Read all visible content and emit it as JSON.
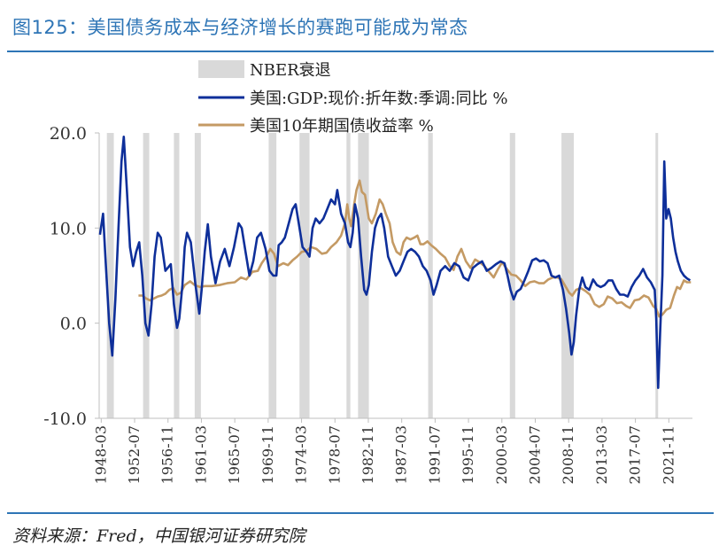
{
  "header": {
    "title": "图125：美国债务成本与经济增长的赛跑可能成为常态"
  },
  "footer": {
    "source": "资料来源：Fred，中国银河证券研究院"
  },
  "colors": {
    "title": "#2e75b6",
    "gdp": "#0e2f9a",
    "treasury": "#c49a64",
    "recession": "#d9d9d9",
    "axis": "#bfbfbf",
    "text": "#333333"
  },
  "chart_data": {
    "type": "line",
    "title": "图125：美国债务成本与经济增长的赛跑可能成为常态",
    "xlabel": "",
    "ylabel": "",
    "ylim": [
      -10,
      20
    ],
    "xlim": [
      1947.9,
      2024.9
    ],
    "yticks": [
      -10,
      0,
      10,
      20
    ],
    "ytick_labels": [
      "-10.0",
      "0.0",
      "10.0",
      "20.0"
    ],
    "xtick_labels": [
      "1948-03",
      "1952-07",
      "1956-11",
      "1961-03",
      "1965-07",
      "1969-11",
      "1974-03",
      "1978-07",
      "1982-11",
      "1987-03",
      "1991-07",
      "1995-11",
      "2000-03",
      "2004-07",
      "2008-11",
      "2013-03",
      "2017-07",
      "2021-11"
    ],
    "legend": [
      {
        "label": "NBER衰退",
        "kind": "band"
      },
      {
        "label": "美国:GDP:现价:折年数:季调:同比 %",
        "kind": "line"
      },
      {
        "label": "美国10年期国债收益率 %",
        "kind": "line"
      }
    ],
    "recessions": [
      [
        1948.9,
        1949.8
      ],
      [
        1953.6,
        1954.4
      ],
      [
        1957.6,
        1958.3
      ],
      [
        1960.3,
        1961.1
      ],
      [
        1969.9,
        1970.9
      ],
      [
        1973.9,
        1975.2
      ],
      [
        1980.0,
        1980.5
      ],
      [
        1981.5,
        1982.9
      ],
      [
        1990.6,
        1991.2
      ],
      [
        2001.2,
        2001.9
      ],
      [
        2007.9,
        2009.5
      ],
      [
        2020.1,
        2020.4
      ]
    ],
    "series": [
      {
        "name": "美国:GDP:现价:折年数:季调:同比 %",
        "x": [
          1948.0,
          1948.4,
          1948.7,
          1949.2,
          1949.6,
          1950.0,
          1950.4,
          1950.8,
          1951.1,
          1951.5,
          1951.9,
          1952.3,
          1952.7,
          1953.1,
          1953.5,
          1953.9,
          1954.3,
          1954.7,
          1955.1,
          1955.5,
          1955.9,
          1956.5,
          1957.2,
          1957.6,
          1958.0,
          1958.3,
          1958.7,
          1959.0,
          1959.3,
          1959.8,
          1960.4,
          1960.9,
          1961.2,
          1961.6,
          1962.0,
          1962.4,
          1963.0,
          1963.6,
          1964.2,
          1964.8,
          1965.4,
          1966.0,
          1966.4,
          1966.9,
          1967.4,
          1967.9,
          1968.4,
          1968.9,
          1969.5,
          1970.0,
          1970.5,
          1970.9,
          1971.2,
          1971.6,
          1972.0,
          1972.5,
          1973.0,
          1973.4,
          1973.8,
          1974.3,
          1974.8,
          1975.2,
          1975.6,
          1976.0,
          1976.5,
          1977.0,
          1977.5,
          1978.0,
          1978.5,
          1978.8,
          1979.3,
          1979.8,
          1980.2,
          1980.5,
          1980.8,
          1981.1,
          1981.5,
          1981.9,
          1982.3,
          1982.6,
          1982.9,
          1983.3,
          1983.7,
          1984.1,
          1984.5,
          1984.9,
          1985.4,
          1985.9,
          1986.4,
          1986.9,
          1987.4,
          1987.9,
          1988.4,
          1988.9,
          1989.4,
          1989.9,
          1990.4,
          1990.9,
          1991.3,
          1991.7,
          1992.2,
          1992.8,
          1993.4,
          1994.0,
          1994.6,
          1995.2,
          1995.8,
          1996.4,
          1997.0,
          1997.6,
          1998.2,
          1998.8,
          1999.4,
          2000.0,
          2000.5,
          2000.9,
          2001.3,
          2001.7,
          2002.1,
          2002.6,
          2003.1,
          2003.6,
          2004.1,
          2004.6,
          2005.1,
          2005.6,
          2006.1,
          2006.6,
          2007.1,
          2007.6,
          2008.1,
          2008.5,
          2008.9,
          2009.2,
          2009.5,
          2009.8,
          2010.2,
          2010.6,
          2011.0,
          2011.5,
          2012.0,
          2012.5,
          2013.0,
          2013.5,
          2014.0,
          2014.5,
          2015.0,
          2015.5,
          2016.0,
          2016.5,
          2017.0,
          2017.5,
          2018.0,
          2018.5,
          2019.0,
          2019.5,
          2020.0,
          2020.2,
          2020.45,
          2020.7,
          2021.0,
          2021.25,
          2021.5,
          2021.8,
          2022.1,
          2022.4,
          2022.7,
          2023.0,
          2023.4,
          2023.8,
          2024.2,
          2024.6
        ],
        "y": [
          9.3,
          11.5,
          7.0,
          0.0,
          -3.4,
          2.5,
          10.0,
          17.0,
          19.6,
          14.0,
          8.0,
          6.0,
          7.5,
          8.5,
          5.0,
          0.0,
          -1.3,
          2.0,
          7.0,
          9.5,
          9.0,
          5.5,
          6.2,
          2.0,
          -0.5,
          0.5,
          4.0,
          8.0,
          9.5,
          8.5,
          4.0,
          1.0,
          3.5,
          7.5,
          10.4,
          7.0,
          4.2,
          6.5,
          7.8,
          6.0,
          8.0,
          10.5,
          10.0,
          7.5,
          5.0,
          6.5,
          9.0,
          9.5,
          7.8,
          5.5,
          5.0,
          5.0,
          8.2,
          8.5,
          9.0,
          10.5,
          12.0,
          12.5,
          10.5,
          8.0,
          7.5,
          7.0,
          10.0,
          11.0,
          10.5,
          11.0,
          12.0,
          13.0,
          12.5,
          14.0,
          11.5,
          10.5,
          8.5,
          8.0,
          9.5,
          12.5,
          11.0,
          7.0,
          3.5,
          3.0,
          4.0,
          7.5,
          10.0,
          11.0,
          11.5,
          10.0,
          7.0,
          6.0,
          5.0,
          5.5,
          6.5,
          7.5,
          7.8,
          7.5,
          7.0,
          6.0,
          5.5,
          4.5,
          3.0,
          4.0,
          5.5,
          6.0,
          5.5,
          6.3,
          6.0,
          4.8,
          4.5,
          5.8,
          6.2,
          6.5,
          5.5,
          5.8,
          6.2,
          6.5,
          6.3,
          5.0,
          3.5,
          2.5,
          3.3,
          3.6,
          4.5,
          5.5,
          6.6,
          6.8,
          6.5,
          6.6,
          6.3,
          5.0,
          4.8,
          5.0,
          3.5,
          1.5,
          -1.0,
          -3.3,
          -2.0,
          0.8,
          3.5,
          4.8,
          3.8,
          3.5,
          4.6,
          4.0,
          3.8,
          4.0,
          4.5,
          4.5,
          3.6,
          3.0,
          3.0,
          2.8,
          3.8,
          4.5,
          5.0,
          5.7,
          4.8,
          4.3,
          3.5,
          0.5,
          -6.8,
          -1.0,
          5.0,
          17.0,
          11.0,
          12.0,
          11.0,
          9.0,
          7.5,
          6.5,
          5.5,
          5.0,
          4.7,
          4.5
        ]
      },
      {
        "name": "美国10年期国债收益率 %",
        "x": [
          1953.0,
          1953.5,
          1954.0,
          1954.5,
          1955.0,
          1955.5,
          1956.0,
          1956.5,
          1957.0,
          1957.5,
          1958.0,
          1958.5,
          1959.0,
          1959.7,
          1960.3,
          1961.0,
          1961.6,
          1962.5,
          1963.5,
          1964.5,
          1965.5,
          1966.3,
          1967.0,
          1967.8,
          1968.5,
          1969.0,
          1969.6,
          1970.1,
          1970.6,
          1971.1,
          1971.8,
          1972.4,
          1973.0,
          1973.6,
          1974.2,
          1974.8,
          1975.4,
          1976.1,
          1976.8,
          1977.4,
          1978.0,
          1978.7,
          1979.3,
          1979.8,
          1980.1,
          1980.35,
          1980.6,
          1981.0,
          1981.3,
          1981.7,
          1982.0,
          1982.4,
          1982.9,
          1983.3,
          1983.8,
          1984.3,
          1984.7,
          1985.1,
          1985.6,
          1986.0,
          1986.5,
          1987.0,
          1987.4,
          1987.8,
          1988.3,
          1988.8,
          1989.2,
          1989.6,
          1990.0,
          1990.5,
          1991.0,
          1991.6,
          1992.2,
          1992.8,
          1993.4,
          1993.9,
          1994.4,
          1994.9,
          1995.5,
          1996.1,
          1996.7,
          1997.3,
          1997.9,
          1998.5,
          1999.1,
          1999.6,
          2000.2,
          2000.8,
          2001.4,
          2002.0,
          2002.6,
          2003.2,
          2003.8,
          2004.4,
          2005.0,
          2005.6,
          2006.2,
          2006.8,
          2007.4,
          2007.9,
          2008.4,
          2008.9,
          2009.3,
          2009.8,
          2010.4,
          2011.0,
          2011.6,
          2012.2,
          2012.8,
          2013.4,
          2013.9,
          2014.5,
          2015.1,
          2015.7,
          2016.3,
          2016.8,
          2017.4,
          2018.0,
          2018.6,
          2019.2,
          2019.8,
          2020.2,
          2020.6,
          2021.0,
          2021.5,
          2022.0,
          2022.5,
          2022.9,
          2023.3,
          2023.8,
          2024.2,
          2024.7
        ],
        "y": [
          2.9,
          2.9,
          2.6,
          2.4,
          2.6,
          2.8,
          2.9,
          3.1,
          3.5,
          3.7,
          3.0,
          3.2,
          4.0,
          4.4,
          4.0,
          3.8,
          3.9,
          3.9,
          4.0,
          4.2,
          4.3,
          4.8,
          4.6,
          5.4,
          5.5,
          6.3,
          7.0,
          7.8,
          7.3,
          6.0,
          6.3,
          6.1,
          6.6,
          7.0,
          7.5,
          7.6,
          8.0,
          7.8,
          7.3,
          7.4,
          8.0,
          8.5,
          9.2,
          10.5,
          12.5,
          11.0,
          10.2,
          12.5,
          14.0,
          15.0,
          13.8,
          13.5,
          11.0,
          10.5,
          11.5,
          13.0,
          12.5,
          11.5,
          10.5,
          8.5,
          7.5,
          7.2,
          8.5,
          9.0,
          8.8,
          9.0,
          9.2,
          8.3,
          8.3,
          8.6,
          8.2,
          7.8,
          7.3,
          6.9,
          6.0,
          5.6,
          7.0,
          7.8,
          6.5,
          5.8,
          6.7,
          6.4,
          6.0,
          5.4,
          4.8,
          5.6,
          6.4,
          5.7,
          5.1,
          5.0,
          4.5,
          3.9,
          4.3,
          4.4,
          4.2,
          4.2,
          4.6,
          4.8,
          4.8,
          4.6,
          3.9,
          3.2,
          2.9,
          3.5,
          3.7,
          3.4,
          3.0,
          2.0,
          1.7,
          2.0,
          2.8,
          2.6,
          2.1,
          2.2,
          1.8,
          1.6,
          2.4,
          2.5,
          2.9,
          2.7,
          1.8,
          1.5,
          0.7,
          0.9,
          1.4,
          1.6,
          2.9,
          3.8,
          3.6,
          4.5,
          4.3,
          4.3
        ]
      }
    ]
  }
}
